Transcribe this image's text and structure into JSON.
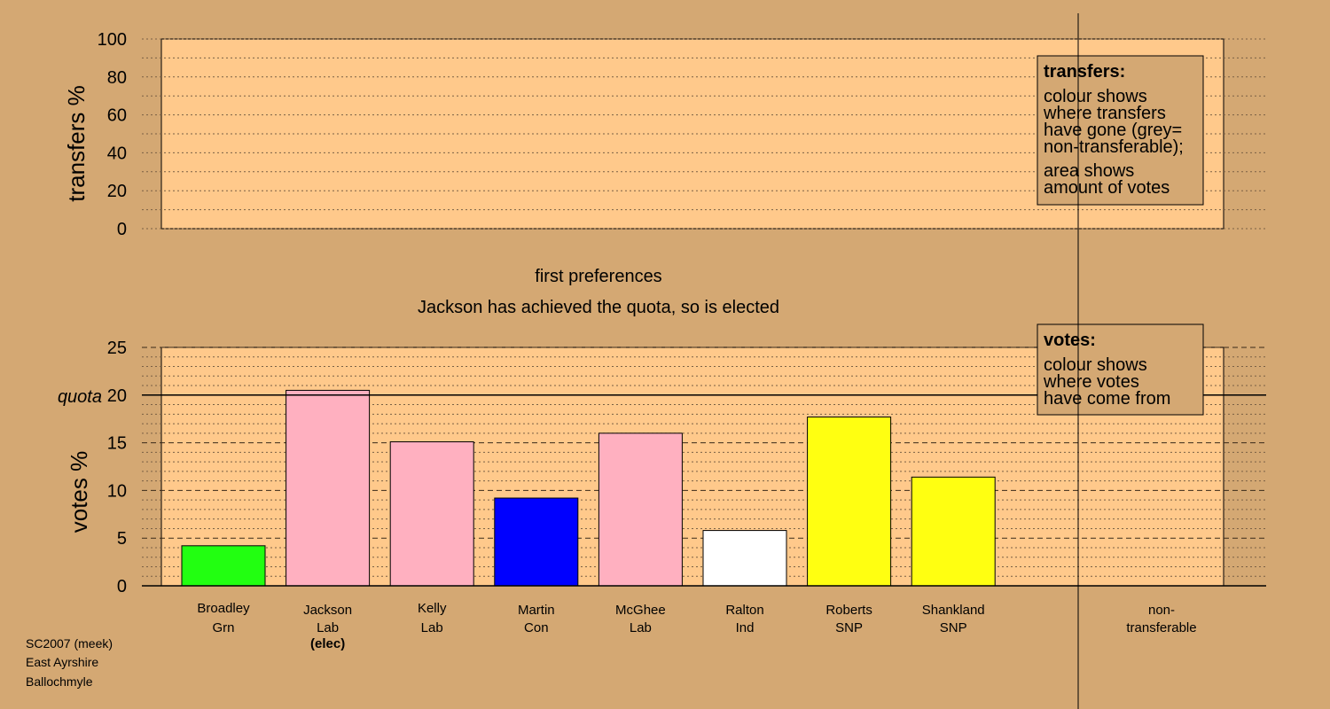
{
  "chart_data": [
    {
      "type": "bar",
      "name": "transfers",
      "ylabel": "transfers %",
      "ylim": [
        0,
        100
      ],
      "yticks": [
        0,
        20,
        40,
        60,
        80,
        100
      ],
      "series": [],
      "legend": {
        "title": "transfers:",
        "lines": [
          "colour shows",
          "where transfers",
          "have gone (grey=",
          "non-transferable);",
          "area shows",
          "amount of votes"
        ],
        "placement": "top-right"
      }
    },
    {
      "type": "bar",
      "name": "votes",
      "title_lines": [
        "first preferences",
        "Jackson has achieved the quota, so is elected"
      ],
      "ylabel": "votes %",
      "ylim": [
        0,
        25
      ],
      "yticks": [
        0,
        5,
        10,
        15,
        20,
        25
      ],
      "quota": 20,
      "quota_label": "quota",
      "categories": [
        {
          "name": "Broadley",
          "party": "Grn",
          "value": 4.2,
          "color": "#22ff11"
        },
        {
          "name": "Jackson",
          "party": "Lab",
          "value": 20.5,
          "color": "#ffb0c0",
          "note": "(elec)"
        },
        {
          "name": "Kelly",
          "party": "Lab",
          "value": 15.1,
          "color": "#ffb0c0"
        },
        {
          "name": "Martin",
          "party": "Con",
          "value": 9.2,
          "color": "#0000ff"
        },
        {
          "name": "McGhee",
          "party": "Lab",
          "value": 16.0,
          "color": "#ffb0c0"
        },
        {
          "name": "Ralton",
          "party": "Ind",
          "value": 5.8,
          "color": "#ffffff"
        },
        {
          "name": "Roberts",
          "party": "SNP",
          "value": 17.7,
          "color": "#ffff11"
        },
        {
          "name": "Shankland",
          "party": "SNP",
          "value": 11.4,
          "color": "#ffff11"
        }
      ],
      "nontransferable_label": [
        "non-",
        "transferable"
      ],
      "legend": {
        "title": "votes:",
        "lines": [
          "colour shows",
          "where votes",
          "have come from"
        ],
        "placement": "top-right"
      }
    }
  ],
  "footer": {
    "lines": [
      "SC2007 (meek)",
      "East Ayrshire",
      "Ballochmyle"
    ]
  },
  "colors": {
    "background": "#d4a873",
    "plot_area": "#ffc98b"
  }
}
